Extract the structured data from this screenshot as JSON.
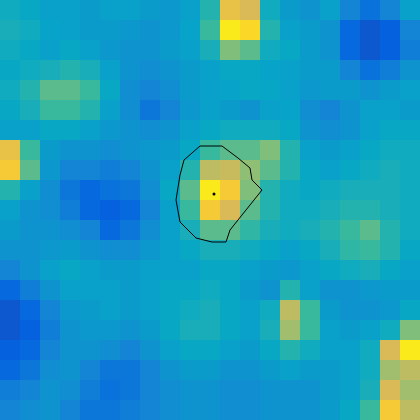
{
  "chart_data": {
    "type": "heatmap",
    "xlim": [
      -0.5,
      20.5
    ],
    "ylim": [
      20.5,
      -0.5
    ],
    "tick_labels": false,
    "grid": false,
    "color_range": [
      0,
      1
    ],
    "cells": [
      [
        0.4,
        0.38,
        0.35,
        0.35,
        0.33,
        0.35,
        0.35,
        0.33,
        0.32,
        0.35,
        0.45,
        0.8,
        0.75,
        0.4,
        0.33,
        0.3,
        0.35,
        0.25,
        0.18,
        0.25,
        0.35
      ],
      [
        0.42,
        0.4,
        0.36,
        0.35,
        0.33,
        0.33,
        0.32,
        0.3,
        0.32,
        0.36,
        0.5,
        0.95,
        0.9,
        0.45,
        0.35,
        0.33,
        0.3,
        0.15,
        0.1,
        0.12,
        0.25
      ],
      [
        0.4,
        0.38,
        0.35,
        0.38,
        0.35,
        0.32,
        0.3,
        0.3,
        0.33,
        0.35,
        0.42,
        0.6,
        0.55,
        0.4,
        0.38,
        0.33,
        0.3,
        0.15,
        0.1,
        0.12,
        0.22
      ],
      [
        0.38,
        0.4,
        0.42,
        0.45,
        0.42,
        0.35,
        0.3,
        0.28,
        0.3,
        0.33,
        0.35,
        0.38,
        0.38,
        0.36,
        0.35,
        0.33,
        0.33,
        0.25,
        0.18,
        0.22,
        0.3
      ],
      [
        0.4,
        0.45,
        0.55,
        0.55,
        0.5,
        0.38,
        0.28,
        0.25,
        0.28,
        0.33,
        0.35,
        0.36,
        0.38,
        0.37,
        0.35,
        0.32,
        0.33,
        0.33,
        0.3,
        0.33,
        0.35
      ],
      [
        0.38,
        0.42,
        0.5,
        0.5,
        0.45,
        0.35,
        0.28,
        0.2,
        0.25,
        0.32,
        0.35,
        0.33,
        0.3,
        0.35,
        0.36,
        0.28,
        0.25,
        0.3,
        0.35,
        0.35,
        0.33
      ],
      [
        0.35,
        0.35,
        0.38,
        0.38,
        0.35,
        0.32,
        0.3,
        0.28,
        0.3,
        0.35,
        0.38,
        0.4,
        0.4,
        0.4,
        0.38,
        0.3,
        0.28,
        0.3,
        0.35,
        0.38,
        0.38
      ],
      [
        0.8,
        0.5,
        0.33,
        0.3,
        0.3,
        0.28,
        0.3,
        0.32,
        0.33,
        0.38,
        0.5,
        0.55,
        0.55,
        0.6,
        0.45,
        0.35,
        0.33,
        0.35,
        0.38,
        0.4,
        0.4
      ],
      [
        0.85,
        0.55,
        0.32,
        0.25,
        0.25,
        0.22,
        0.25,
        0.3,
        0.35,
        0.45,
        0.7,
        0.72,
        0.62,
        0.55,
        0.45,
        0.38,
        0.35,
        0.38,
        0.4,
        0.42,
        0.4
      ],
      [
        0.45,
        0.35,
        0.28,
        0.2,
        0.15,
        0.18,
        0.2,
        0.28,
        0.38,
        0.55,
        0.95,
        0.85,
        0.6,
        0.45,
        0.4,
        0.38,
        0.4,
        0.42,
        0.42,
        0.42,
        0.4
      ],
      [
        0.35,
        0.3,
        0.28,
        0.22,
        0.15,
        0.12,
        0.15,
        0.25,
        0.35,
        0.5,
        0.85,
        0.75,
        0.55,
        0.45,
        0.4,
        0.4,
        0.42,
        0.45,
        0.45,
        0.42,
        0.4
      ],
      [
        0.33,
        0.3,
        0.3,
        0.28,
        0.25,
        0.15,
        0.2,
        0.28,
        0.35,
        0.42,
        0.55,
        0.55,
        0.48,
        0.42,
        0.4,
        0.42,
        0.45,
        0.5,
        0.55,
        0.45,
        0.4
      ],
      [
        0.3,
        0.3,
        0.32,
        0.33,
        0.3,
        0.28,
        0.28,
        0.32,
        0.35,
        0.38,
        0.42,
        0.42,
        0.4,
        0.38,
        0.35,
        0.38,
        0.42,
        0.48,
        0.5,
        0.45,
        0.38
      ],
      [
        0.25,
        0.3,
        0.35,
        0.38,
        0.35,
        0.33,
        0.33,
        0.35,
        0.35,
        0.35,
        0.38,
        0.38,
        0.35,
        0.33,
        0.32,
        0.35,
        0.38,
        0.4,
        0.42,
        0.38,
        0.35
      ],
      [
        0.15,
        0.22,
        0.3,
        0.35,
        0.35,
        0.35,
        0.33,
        0.35,
        0.38,
        0.38,
        0.4,
        0.38,
        0.33,
        0.3,
        0.45,
        0.35,
        0.3,
        0.3,
        0.32,
        0.33,
        0.33
      ],
      [
        0.1,
        0.15,
        0.25,
        0.32,
        0.33,
        0.35,
        0.33,
        0.35,
        0.38,
        0.4,
        0.42,
        0.38,
        0.35,
        0.4,
        0.7,
        0.5,
        0.33,
        0.3,
        0.3,
        0.32,
        0.38
      ],
      [
        0.1,
        0.12,
        0.22,
        0.3,
        0.32,
        0.32,
        0.3,
        0.33,
        0.38,
        0.42,
        0.42,
        0.38,
        0.35,
        0.42,
        0.65,
        0.5,
        0.35,
        0.33,
        0.35,
        0.4,
        0.6
      ],
      [
        0.12,
        0.15,
        0.25,
        0.3,
        0.3,
        0.28,
        0.25,
        0.3,
        0.35,
        0.38,
        0.38,
        0.35,
        0.33,
        0.38,
        0.45,
        0.4,
        0.35,
        0.35,
        0.4,
        0.75,
        0.95
      ],
      [
        0.15,
        0.2,
        0.28,
        0.3,
        0.25,
        0.2,
        0.2,
        0.25,
        0.3,
        0.33,
        0.33,
        0.3,
        0.3,
        0.33,
        0.35,
        0.33,
        0.33,
        0.35,
        0.4,
        0.65,
        0.7
      ],
      [
        0.22,
        0.25,
        0.3,
        0.28,
        0.22,
        0.18,
        0.2,
        0.25,
        0.28,
        0.3,
        0.3,
        0.28,
        0.28,
        0.3,
        0.3,
        0.3,
        0.33,
        0.35,
        0.42,
        0.75,
        0.65
      ],
      [
        0.25,
        0.28,
        0.3,
        0.25,
        0.2,
        0.2,
        0.22,
        0.25,
        0.28,
        0.3,
        0.3,
        0.28,
        0.28,
        0.3,
        0.3,
        0.3,
        0.33,
        0.38,
        0.5,
        0.85,
        0.7
      ]
    ],
    "contour": {
      "x": [
        9.5,
        10.6,
        11.4,
        12.0,
        12.1,
        12.6,
        12.0,
        11.6,
        11.0,
        10.8,
        10.1,
        9.3,
        8.5,
        8.3,
        8.5,
        8.7,
        9.5
      ],
      "y": [
        6.8,
        6.8,
        7.4,
        7.9,
        8.5,
        9.0,
        9.75,
        10.25,
        11.0,
        11.6,
        11.6,
        11.4,
        10.6,
        9.5,
        8.25,
        7.5,
        6.8
      ]
    },
    "point": {
      "x": 10.2,
      "y": 9.2
    }
  }
}
